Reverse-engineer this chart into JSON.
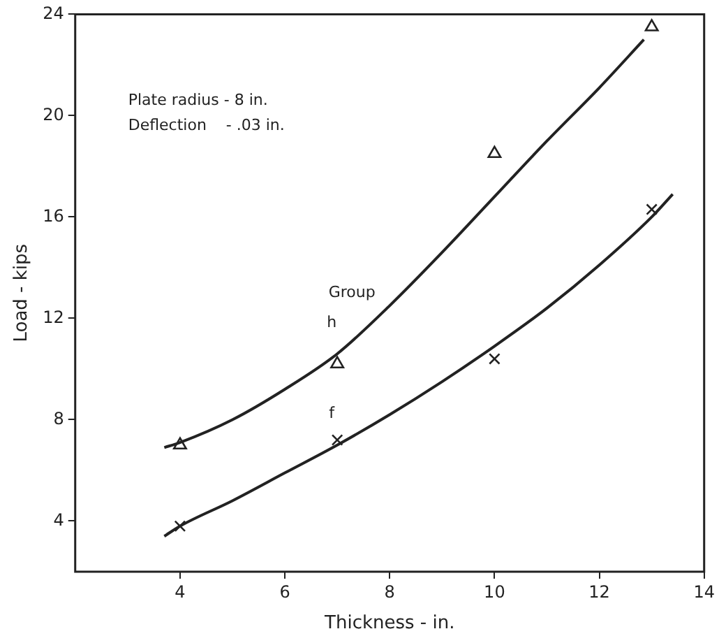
{
  "chart_data": {
    "type": "scatter",
    "xlabel": "Thickness - in.",
    "ylabel": "Load - kips",
    "xlim": [
      2,
      14
    ],
    "xticks": [
      4,
      6,
      8,
      10,
      12,
      14
    ],
    "ylim": [
      2,
      24
    ],
    "yticks": [
      4,
      8,
      12,
      16,
      20,
      24
    ],
    "grid": false,
    "legend": false,
    "annotations": [
      "Plate radius - 8 in.",
      "Deflection    - .03 in.",
      "Group"
    ],
    "series": [
      {
        "type": "scatter",
        "marker": "triangle",
        "color": "#222222",
        "x": [
          4,
          7,
          10,
          13
        ],
        "values": [
          7.0,
          10.2,
          18.5,
          23.5
        ]
      },
      {
        "name": "h",
        "type": "line",
        "marker": "none",
        "line_style": "solid",
        "color": "#222222",
        "x": [
          3.7,
          4,
          5,
          6,
          7,
          8,
          9,
          10,
          11,
          12,
          12.85
        ],
        "values": [
          6.9,
          7.1,
          8.0,
          9.2,
          10.6,
          12.5,
          14.6,
          16.8,
          19.0,
          21.1,
          23.0
        ]
      },
      {
        "type": "scatter",
        "marker": "cross",
        "color": "#222222",
        "x": [
          4,
          7,
          10,
          13
        ],
        "values": [
          3.8,
          7.2,
          10.4,
          16.3
        ]
      },
      {
        "name": "f",
        "type": "line",
        "marker": "none",
        "line_style": "solid",
        "color": "#222222",
        "x": [
          3.7,
          4,
          5,
          6,
          7,
          8,
          9,
          10,
          11,
          12,
          13,
          13.4
        ],
        "values": [
          3.4,
          3.8,
          4.8,
          5.9,
          7.0,
          8.2,
          9.5,
          10.9,
          12.4,
          14.1,
          16.0,
          16.9
        ]
      }
    ]
  }
}
